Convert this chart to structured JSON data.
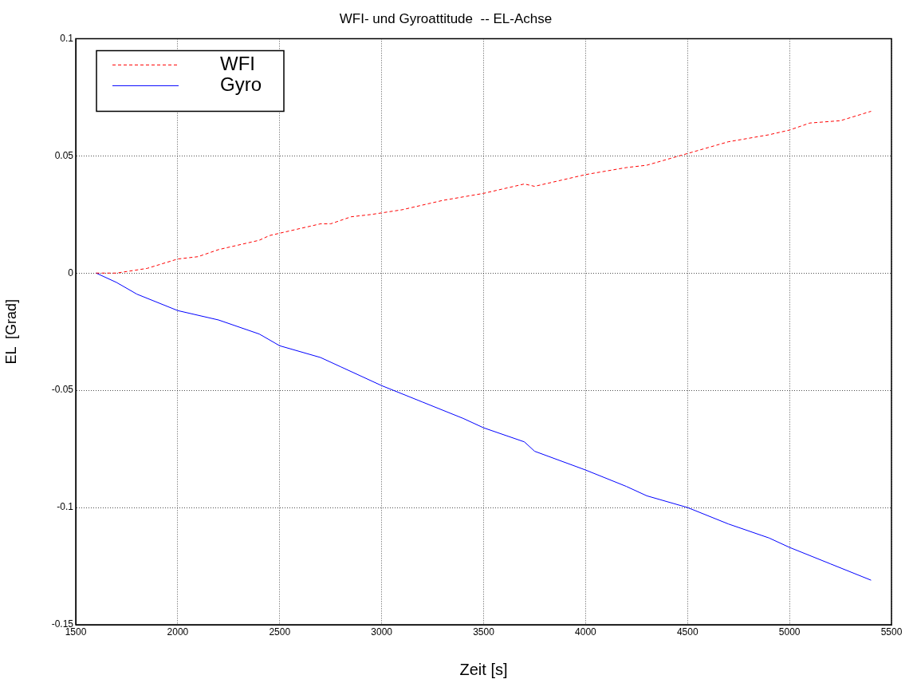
{
  "chart_data": {
    "type": "line",
    "title": "WFI- und Gyroattitude  -- EL-Achse",
    "xlabel": "Zeit [s]",
    "ylabel": "EL  [Grad]",
    "xlim": [
      1500,
      5500
    ],
    "xticks": [
      1500,
      2000,
      2500,
      3000,
      3500,
      4000,
      4500,
      5000,
      5500
    ],
    "ylim": [
      -0.15,
      0.1
    ],
    "yticks": [
      -0.15,
      -0.1,
      -0.05,
      0,
      0.05,
      0.1
    ],
    "grid": true,
    "legend": "top left",
    "marker": "none",
    "series": [
      {
        "name": "WFI",
        "color": "#ff0000",
        "line_style": "dashed",
        "x": [
          1600,
          1700,
          1850,
          2000,
          2100,
          2200,
          2400,
          2450,
          2600,
          2700,
          2750,
          2850,
          2950,
          3100,
          3300,
          3500,
          3700,
          3750,
          3850,
          4000,
          4200,
          4300,
          4500,
          4700,
          4900,
          5000,
          5100,
          5250,
          5400
        ],
        "values": [
          0,
          0,
          0.002,
          0.006,
          0.007,
          0.01,
          0.014,
          0.016,
          0.019,
          0.021,
          0.021,
          0.024,
          0.025,
          0.027,
          0.031,
          0.034,
          0.038,
          0.037,
          0.039,
          0.042,
          0.045,
          0.046,
          0.051,
          0.056,
          0.059,
          0.061,
          0.064,
          0.065,
          0.069
        ]
      },
      {
        "name": "Gyro",
        "color": "#0000ff",
        "line_style": "solid",
        "x": [
          1600,
          1700,
          1800,
          2000,
          2200,
          2400,
          2500,
          2700,
          2800,
          3000,
          3200,
          3400,
          3500,
          3700,
          3750,
          4000,
          4200,
          4300,
          4500,
          4700,
          4900,
          5000,
          5200,
          5400
        ],
        "values": [
          0,
          -0.004,
          -0.009,
          -0.016,
          -0.02,
          -0.026,
          -0.031,
          -0.036,
          -0.04,
          -0.048,
          -0.055,
          -0.062,
          -0.066,
          -0.072,
          -0.076,
          -0.084,
          -0.091,
          -0.095,
          -0.1,
          -0.107,
          -0.113,
          -0.117,
          -0.124,
          -0.131
        ]
      }
    ]
  }
}
